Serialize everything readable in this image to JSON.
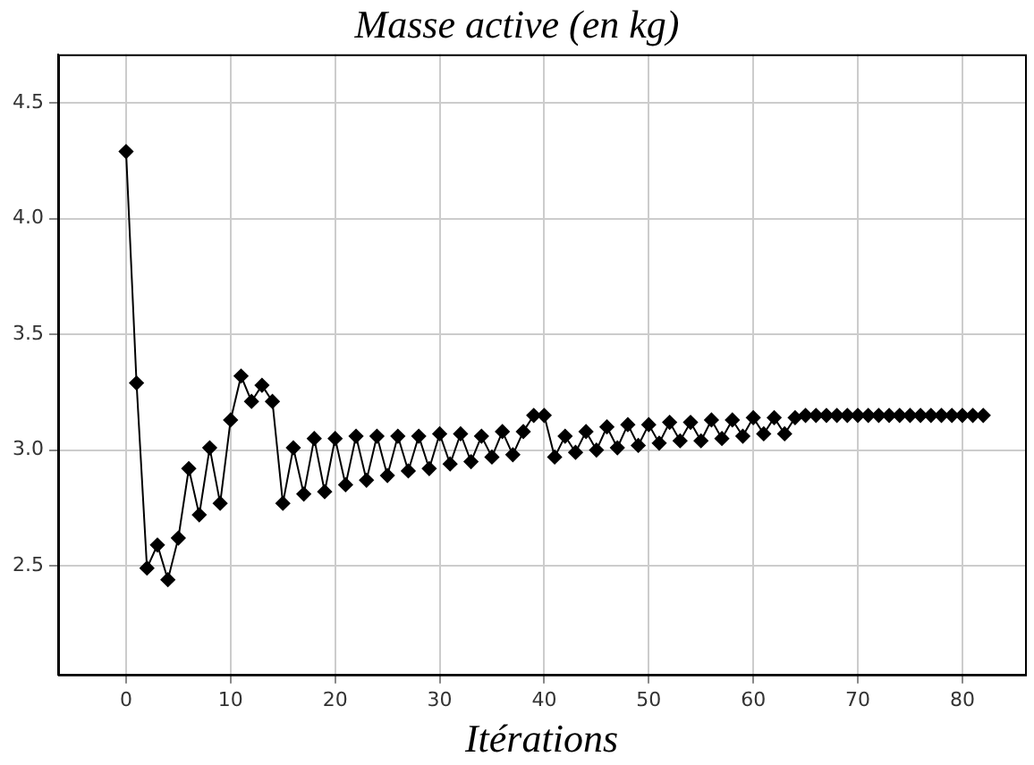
{
  "chart_data": {
    "type": "line",
    "title": "Masse active (en kg)",
    "xlabel": "Itérations",
    "x": [
      0,
      1,
      2,
      3,
      4,
      5,
      6,
      7,
      8,
      9,
      10,
      11,
      12,
      13,
      14,
      15,
      16,
      17,
      18,
      19,
      20,
      21,
      22,
      23,
      24,
      25,
      26,
      27,
      28,
      29,
      30,
      31,
      32,
      33,
      34,
      35,
      36,
      37,
      38,
      39,
      40,
      41,
      42,
      43,
      44,
      45,
      46,
      47,
      48,
      49,
      50,
      51,
      52,
      53,
      54,
      55,
      56,
      57,
      58,
      59,
      60,
      61,
      62,
      63,
      64,
      65,
      66,
      67,
      68,
      69,
      70,
      71,
      72,
      73,
      74,
      75,
      76,
      77,
      78,
      79,
      80,
      81,
      82
    ],
    "series": [
      {
        "color": "#000000",
        "values": [
          4.29,
          3.29,
          2.49,
          2.59,
          2.44,
          2.62,
          2.92,
          2.72,
          3.01,
          2.77,
          3.13,
          3.32,
          3.21,
          3.28,
          3.21,
          2.77,
          3.01,
          2.81,
          3.05,
          2.82,
          3.05,
          2.85,
          3.06,
          2.87,
          3.06,
          2.89,
          3.06,
          2.91,
          3.06,
          2.92,
          3.07,
          2.94,
          3.07,
          2.95,
          3.06,
          2.97,
          3.08,
          2.98,
          3.08,
          3.15,
          3.15,
          2.97,
          3.06,
          2.99,
          3.08,
          3.0,
          3.1,
          3.01,
          3.11,
          3.02,
          3.11,
          3.03,
          3.12,
          3.04,
          3.12,
          3.04,
          3.13,
          3.05,
          3.13,
          3.06,
          3.14,
          3.07,
          3.14,
          3.07,
          3.14,
          3.15,
          3.15,
          3.15,
          3.15,
          3.15,
          3.15,
          3.15,
          3.15,
          3.15,
          3.15,
          3.15,
          3.15,
          3.15,
          3.15,
          3.15,
          3.15,
          3.15,
          3.15
        ]
      }
    ],
    "xlim": [
      -6.5,
      86
    ],
    "xticks": [
      0,
      10,
      20,
      30,
      40,
      50,
      60,
      70,
      80
    ],
    "ylim": [
      2.03,
      4.71
    ],
    "yticks": [
      {
        "value": 2.5,
        "label": "2.5"
      },
      {
        "value": 3,
        "label": "3.0"
      },
      {
        "value": 3.5,
        "label": "3.5"
      },
      {
        "value": 4,
        "label": "4.0"
      },
      {
        "value": 4.5,
        "label": "4.5"
      }
    ],
    "grid": true,
    "legend": false,
    "marker": "diamond",
    "line_style": "solid"
  }
}
